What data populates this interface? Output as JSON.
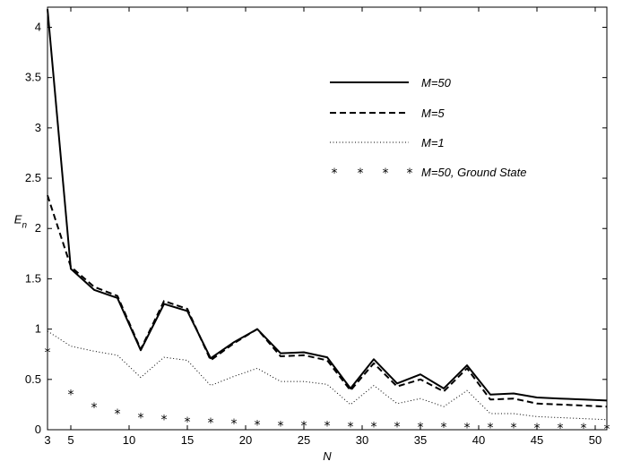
{
  "chart_data": {
    "type": "line",
    "xlabel": "N",
    "ylabel": "E",
    "ylabel_subscript": "n",
    "xlim": [
      3,
      51
    ],
    "ylim": [
      0,
      4.2
    ],
    "xticks": [
      3,
      5,
      10,
      15,
      20,
      25,
      30,
      35,
      40,
      45,
      50
    ],
    "yticks": [
      0,
      0.5,
      1,
      1.5,
      2,
      2.5,
      3,
      3.5,
      4
    ],
    "xtick_labels": [
      "3",
      "5",
      "10",
      "15",
      "20",
      "25",
      "30",
      "35",
      "40",
      "45",
      "50"
    ],
    "ytick_labels": [
      "0",
      "0.5",
      "1",
      "1.5",
      "2",
      "2.5",
      "3",
      "3.5",
      "4"
    ],
    "grid": false,
    "legend_position": "top-right",
    "x": [
      3,
      5,
      7,
      9,
      11,
      13,
      15,
      17,
      19,
      21,
      23,
      25,
      27,
      29,
      31,
      33,
      35,
      37,
      39,
      41,
      43,
      45,
      47,
      49,
      51
    ],
    "series": [
      {
        "name": "M=50",
        "style": "solid",
        "values": [
          4.18,
          1.6,
          1.39,
          1.31,
          0.79,
          1.25,
          1.18,
          0.71,
          0.87,
          1.0,
          0.76,
          0.77,
          0.72,
          0.41,
          0.7,
          0.46,
          0.55,
          0.41,
          0.64,
          0.35,
          0.36,
          0.32,
          0.31,
          0.3,
          0.29
        ]
      },
      {
        "name": "M=5",
        "style": "dashed",
        "values": [
          2.33,
          1.62,
          1.42,
          1.33,
          0.8,
          1.28,
          1.2,
          0.69,
          0.86,
          1.0,
          0.73,
          0.74,
          0.69,
          0.39,
          0.66,
          0.43,
          0.5,
          0.38,
          0.61,
          0.3,
          0.31,
          0.26,
          0.25,
          0.24,
          0.23
        ]
      },
      {
        "name": "M=1",
        "style": "dotted",
        "values": [
          0.98,
          0.83,
          0.78,
          0.74,
          0.52,
          0.72,
          0.69,
          0.44,
          0.53,
          0.61,
          0.48,
          0.48,
          0.45,
          0.25,
          0.44,
          0.26,
          0.31,
          0.23,
          0.39,
          0.16,
          0.16,
          0.13,
          0.12,
          0.11,
          0.1
        ]
      },
      {
        "name": "M=50, Ground State",
        "style": "star",
        "values": [
          0.78,
          0.36,
          0.23,
          0.17,
          0.13,
          0.11,
          0.09,
          0.08,
          0.07,
          0.06,
          0.05,
          0.05,
          0.05,
          0.04,
          0.04,
          0.04,
          0.035,
          0.035,
          0.03,
          0.03,
          0.03,
          0.025,
          0.025,
          0.025,
          0.02
        ]
      }
    ]
  }
}
